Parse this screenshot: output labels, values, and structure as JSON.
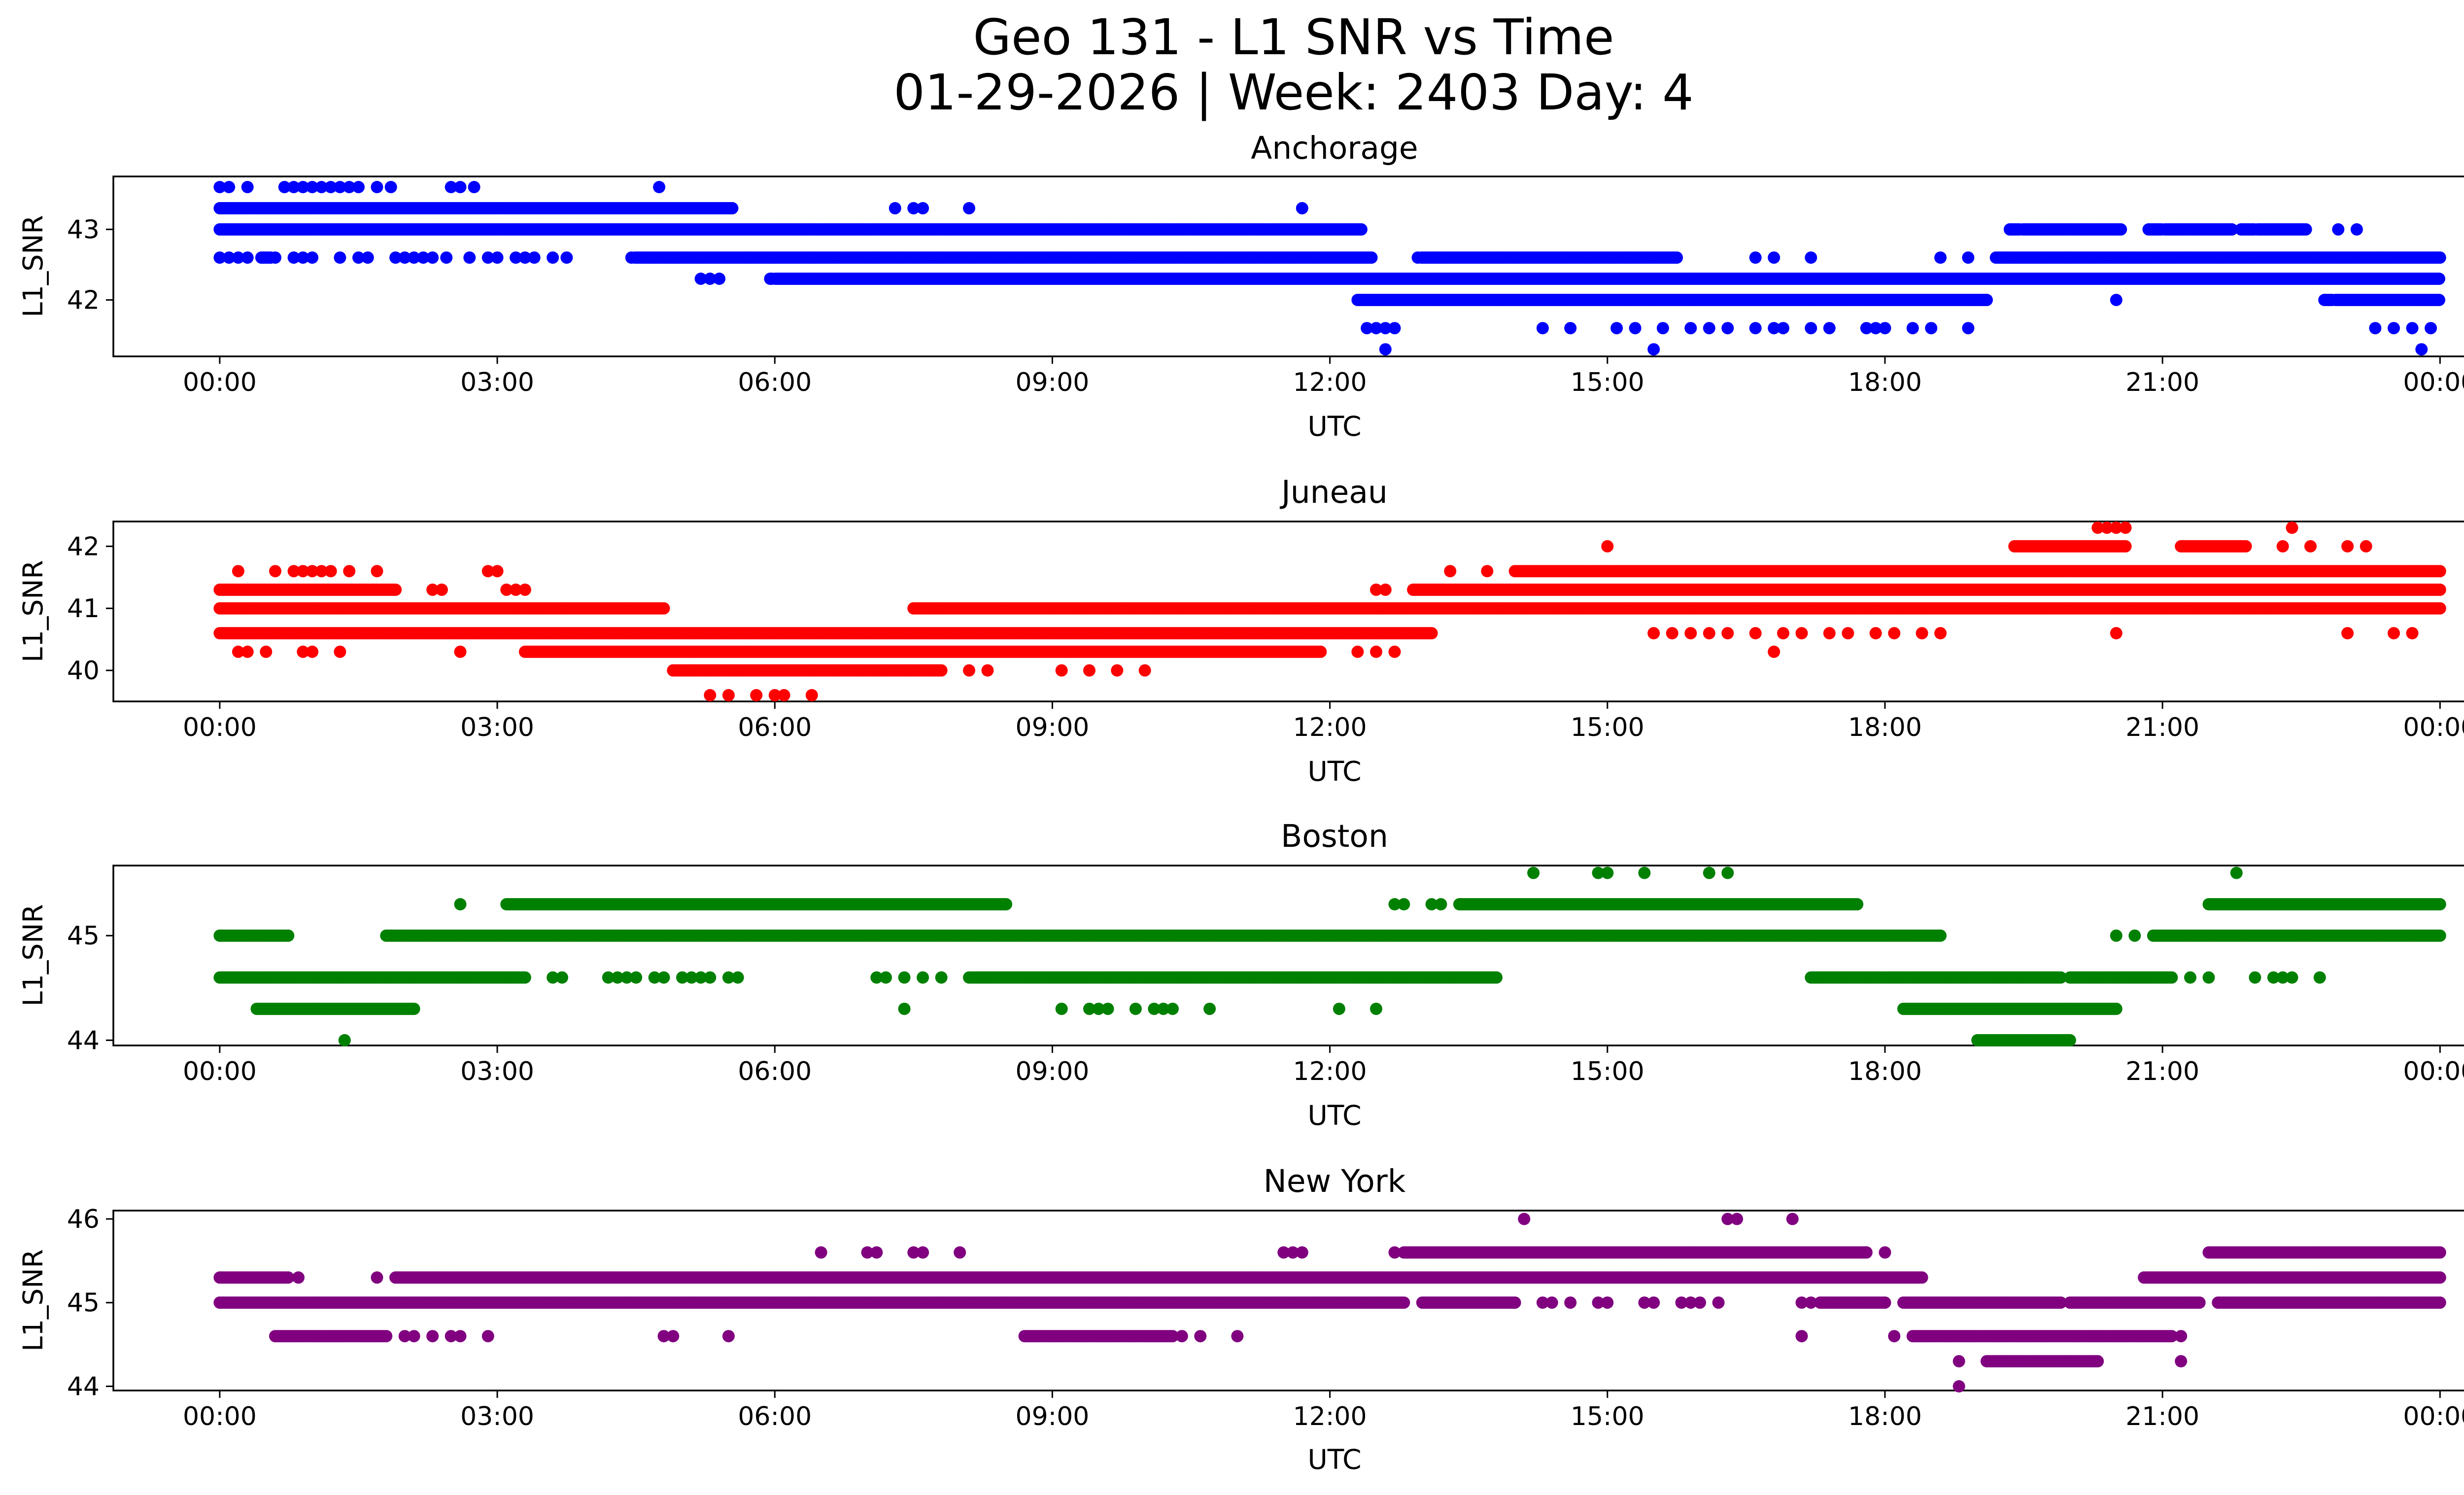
{
  "chart_data": {
    "type": "scatter",
    "title": "Geo 131 - L1 SNR vs Time",
    "subtitle": "01-29-2026 | Week: 2403 Day: 4",
    "x_unit": "hours UTC",
    "xlim": [
      -1.15,
      25.25
    ],
    "x_ticks": [
      0,
      3,
      6,
      9,
      12,
      15,
      18,
      21,
      24
    ],
    "x_tick_labels": [
      "00:00",
      "03:00",
      "06:00",
      "09:00",
      "12:00",
      "15:00",
      "18:00",
      "21:00",
      "00:00"
    ],
    "point_step_hours": 0.02,
    "panels": [
      {
        "name": "Anchorage",
        "title": "Anchorage",
        "color": "#0000ff",
        "xlabel": "UTC",
        "ylabel": "L1_SNR",
        "ylim": [
          41.2,
          43.75
        ],
        "yticks": [
          42,
          43
        ],
        "dense_bands": [
          {
            "y": 43.3,
            "x0": 0.0,
            "x1": 5.55
          },
          {
            "y": 43.0,
            "x0": 0.0,
            "x1": 12.35
          },
          {
            "y": 42.6,
            "x0": 0.45,
            "x1": 0.55
          },
          {
            "y": 42.6,
            "x0": 4.45,
            "x1": 12.45
          },
          {
            "y": 42.6,
            "x0": 12.95,
            "x1": 15.75
          },
          {
            "y": 42.6,
            "x0": 19.2,
            "x1": 24.0
          },
          {
            "y": 42.3,
            "x0": 5.95,
            "x1": 24.0
          },
          {
            "y": 42.0,
            "x0": 12.3,
            "x1": 19.1
          },
          {
            "y": 42.0,
            "x0": 22.75,
            "x1": 24.0
          },
          {
            "y": 43.0,
            "x0": 19.35,
            "x1": 20.55
          },
          {
            "y": 43.0,
            "x0": 20.85,
            "x1": 21.75
          },
          {
            "y": 43.0,
            "x0": 21.85,
            "x1": 22.55
          }
        ],
        "sparse_points": [
          {
            "y": 43.6,
            "x": [
              0.0,
              0.1,
              0.3,
              0.7,
              0.8,
              0.9,
              1.0,
              1.1,
              1.2,
              1.3,
              1.4,
              1.5,
              1.7,
              1.85,
              2.5,
              2.6,
              2.75,
              4.75
            ]
          },
          {
            "y": 42.6,
            "x": [
              0.0,
              0.1,
              0.2,
              0.3,
              0.6,
              0.8,
              0.9,
              1.0,
              1.3,
              1.5,
              1.6,
              1.9,
              2.0,
              2.1,
              2.2,
              2.3,
              2.45,
              2.7,
              2.9,
              3.0,
              3.2,
              3.3,
              3.4,
              3.6,
              3.75
            ]
          },
          {
            "y": 43.3,
            "x": [
              7.3,
              7.5,
              7.6,
              8.1,
              11.7
            ]
          },
          {
            "y": 42.3,
            "x": [
              5.2,
              5.3,
              5.4,
              7.3,
              7.5,
              7.8,
              8.4,
              8.6,
              9.2,
              9.5,
              9.8,
              11.2,
              11.5
            ]
          },
          {
            "y": 41.6,
            "x": [
              12.4,
              12.5,
              12.6,
              12.7,
              14.3,
              14.6,
              15.1,
              15.3,
              15.6,
              15.9,
              16.1,
              16.3,
              16.6,
              16.8,
              16.9,
              17.2,
              17.4,
              17.8,
              17.9,
              18.0,
              18.3,
              18.5,
              18.9,
              23.3,
              23.5,
              23.7,
              23.9
            ]
          },
          {
            "y": 41.3,
            "x": [
              12.6,
              15.5,
              23.8
            ]
          },
          {
            "y": 42.6,
            "x": [
              16.6,
              16.8,
              17.2,
              18.6,
              18.9
            ]
          },
          {
            "y": 43.0,
            "x": [
              22.9,
              23.1
            ]
          },
          {
            "y": 42.0,
            "x": [
              20.5
            ]
          }
        ]
      },
      {
        "name": "Juneau",
        "title": "Juneau",
        "color": "#ff0000",
        "xlabel": "UTC",
        "ylabel": "L1_SNR",
        "ylim": [
          39.5,
          42.4
        ],
        "yticks": [
          40,
          41,
          42
        ],
        "dense_bands": [
          {
            "y": 41.3,
            "x0": 0.0,
            "x1": 1.9
          },
          {
            "y": 41.0,
            "x0": 0.0,
            "x1": 4.8
          },
          {
            "y": 40.6,
            "x0": 0.0,
            "x1": 13.1
          },
          {
            "y": 40.3,
            "x0": 3.3,
            "x1": 11.9
          },
          {
            "y": 40.0,
            "x0": 4.9,
            "x1": 7.8
          },
          {
            "y": 41.0,
            "x0": 7.5,
            "x1": 24.0
          },
          {
            "y": 41.3,
            "x0": 12.9,
            "x1": 24.0
          },
          {
            "y": 41.6,
            "x0": 14.0,
            "x1": 24.0
          },
          {
            "y": 41.0,
            "x0": 2.6,
            "x1": 3.9
          },
          {
            "y": 42.0,
            "x0": 19.4,
            "x1": 20.6
          },
          {
            "y": 42.0,
            "x0": 21.2,
            "x1": 21.9
          }
        ],
        "sparse_points": [
          {
            "y": 41.6,
            "x": [
              0.2,
              0.6,
              0.8,
              0.9,
              1.0,
              1.1,
              1.2,
              1.4,
              1.7,
              2.9,
              3.0,
              13.3,
              13.7
            ]
          },
          {
            "y": 40.3,
            "x": [
              0.2,
              0.3,
              0.5,
              0.9,
              1.0,
              1.3,
              2.6,
              12.3,
              12.5,
              12.7
            ]
          },
          {
            "y": 41.3,
            "x": [
              2.3,
              2.4,
              3.1,
              3.2,
              3.3,
              12.5,
              12.6
            ]
          },
          {
            "y": 40.0,
            "x": [
              8.1,
              8.3,
              9.1,
              9.4,
              9.7,
              10.0
            ]
          },
          {
            "y": 39.6,
            "x": [
              5.3,
              5.5,
              5.8,
              6.0,
              6.1,
              6.4
            ]
          },
          {
            "y": 42.0,
            "x": [
              15.0,
              22.3,
              22.6,
              23.0,
              23.2
            ]
          },
          {
            "y": 42.3,
            "x": [
              20.3,
              20.4,
              20.5,
              20.6,
              22.4
            ]
          },
          {
            "y": 40.6,
            "x": [
              15.5,
              15.7,
              15.9,
              16.1,
              16.3,
              16.6,
              16.9,
              17.1,
              17.4,
              17.6,
              17.9,
              18.1,
              18.4,
              18.6,
              20.5,
              23.0,
              23.5,
              23.7
            ]
          },
          {
            "y": 40.3,
            "x": [
              16.8
            ]
          },
          {
            "y": 41.0,
            "x": [
              19.3,
              19.6,
              20.2,
              20.8,
              21.2,
              21.6
            ]
          }
        ]
      },
      {
        "name": "Boston",
        "title": "Boston",
        "color": "#008000",
        "xlabel": "UTC",
        "ylabel": "L1_SNR",
        "ylim": [
          43.95,
          45.67
        ],
        "yticks": [
          44,
          45
        ],
        "dense_bands": [
          {
            "y": 45.0,
            "x0": 0.0,
            "x1": 0.75
          },
          {
            "y": 45.0,
            "x0": 1.8,
            "x1": 18.6
          },
          {
            "y": 45.0,
            "x0": 20.9,
            "x1": 24.0
          },
          {
            "y": 44.6,
            "x0": 0.0,
            "x1": 3.3
          },
          {
            "y": 44.6,
            "x0": 8.1,
            "x1": 13.8
          },
          {
            "y": 44.6,
            "x0": 17.2,
            "x1": 19.9
          },
          {
            "y": 44.6,
            "x0": 20.0,
            "x1": 21.1
          },
          {
            "y": 44.3,
            "x0": 0.4,
            "x1": 2.1
          },
          {
            "y": 44.3,
            "x0": 18.2,
            "x1": 20.5
          },
          {
            "y": 44.0,
            "x0": 19.0,
            "x1": 20.0
          },
          {
            "y": 45.3,
            "x0": 3.1,
            "x1": 8.5
          },
          {
            "y": 45.3,
            "x0": 13.4,
            "x1": 17.7
          },
          {
            "y": 45.3,
            "x0": 21.5,
            "x1": 24.0
          }
        ],
        "sparse_points": [
          {
            "y": 45.6,
            "x": [
              14.2,
              14.9,
              15.0,
              15.4,
              16.1,
              16.3,
              21.8
            ]
          },
          {
            "y": 45.3,
            "x": [
              2.6,
              12.7,
              12.8,
              13.1,
              13.2
            ]
          },
          {
            "y": 45.0,
            "x": [
              20.5,
              20.7
            ]
          },
          {
            "y": 44.6,
            "x": [
              3.6,
              3.7,
              4.2,
              4.3,
              4.4,
              4.5,
              4.7,
              4.8,
              5.0,
              5.1,
              5.2,
              5.3,
              5.5,
              5.6,
              7.1,
              7.2,
              7.4,
              7.6,
              7.8,
              21.3,
              21.5,
              22.0,
              22.2,
              22.3,
              22.4,
              22.7
            ]
          },
          {
            "y": 44.3,
            "x": [
              7.4,
              9.1,
              9.4,
              9.5,
              9.6,
              9.9,
              10.1,
              10.2,
              10.3,
              10.7,
              12.1,
              12.5
            ]
          },
          {
            "y": 44.0,
            "x": [
              1.35
            ]
          }
        ]
      },
      {
        "name": "New York",
        "title": "New York",
        "color": "#800080",
        "xlabel": "UTC",
        "ylabel": "L1_SNR",
        "ylim": [
          43.95,
          46.1
        ],
        "yticks": [
          44,
          45,
          46
        ],
        "dense_bands": [
          {
            "y": 45.3,
            "x0": 0.0,
            "x1": 0.75
          },
          {
            "y": 45.3,
            "x0": 1.9,
            "x1": 18.4
          },
          {
            "y": 45.3,
            "x0": 20.8,
            "x1": 24.0
          },
          {
            "y": 45.0,
            "x0": 0.0,
            "x1": 12.8
          },
          {
            "y": 45.0,
            "x0": 13.0,
            "x1": 14.0
          },
          {
            "y": 45.0,
            "x0": 17.3,
            "x1": 18.0
          },
          {
            "y": 45.0,
            "x0": 18.2,
            "x1": 19.9
          },
          {
            "y": 45.0,
            "x0": 20.0,
            "x1": 21.4
          },
          {
            "y": 45.0,
            "x0": 21.6,
            "x1": 24.0
          },
          {
            "y": 44.6,
            "x0": 0.6,
            "x1": 1.8
          },
          {
            "y": 44.6,
            "x0": 8.7,
            "x1": 10.3
          },
          {
            "y": 44.6,
            "x0": 18.3,
            "x1": 21.1
          },
          {
            "y": 44.3,
            "x0": 19.1,
            "x1": 20.3
          },
          {
            "y": 45.6,
            "x0": 12.8,
            "x1": 17.8
          },
          {
            "y": 45.6,
            "x0": 21.5,
            "x1": 24.0
          }
        ],
        "sparse_points": [
          {
            "y": 46.0,
            "x": [
              14.1,
              16.3,
              16.4,
              17.0
            ]
          },
          {
            "y": 45.6,
            "x": [
              6.5,
              7.0,
              7.1,
              7.5,
              7.6,
              8.0,
              11.5,
              11.6,
              11.7,
              12.7,
              18.0
            ]
          },
          {
            "y": 45.3,
            "x": [
              0.85,
              1.7
            ]
          },
          {
            "y": 45.0,
            "x": [
              14.3,
              14.4,
              14.6,
              14.9,
              15.0,
              15.4,
              15.5,
              15.8,
              15.9,
              16.0,
              16.2,
              17.1,
              17.2,
              22.6,
              22.8,
              23.9
            ]
          },
          {
            "y": 44.6,
            "x": [
              2.0,
              2.1,
              2.3,
              2.5,
              2.6,
              2.9,
              4.8,
              4.9,
              5.5,
              10.4,
              10.6,
              11.0,
              17.1,
              18.1,
              21.2
            ]
          },
          {
            "y": 44.3,
            "x": [
              18.8,
              21.2
            ]
          },
          {
            "y": 44.0,
            "x": [
              18.8
            ]
          }
        ]
      }
    ]
  }
}
